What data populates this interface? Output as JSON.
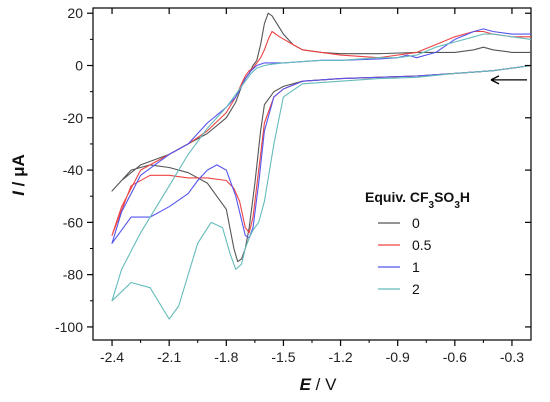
{
  "chart_data": {
    "type": "line",
    "xlabel_italic": "E",
    "xlabel_unit": " / V",
    "ylabel_italic": "I",
    "ylabel_unit": " / μA",
    "xlim": [
      -2.5,
      -0.2
    ],
    "ylim": [
      -105,
      22
    ],
    "xticks": [
      -2.4,
      -2.1,
      -1.8,
      -1.5,
      -1.2,
      -0.9,
      -0.6,
      -0.3
    ],
    "xtick_labels": [
      "-2.4",
      "-2.1",
      "-1.8",
      "-1.5",
      "-1.2",
      "-0.9",
      "-0.6",
      "-0.3"
    ],
    "yticks": [
      20,
      0,
      -20,
      -40,
      -60,
      -80,
      -100
    ],
    "ytick_labels": [
      "20",
      "0",
      "-20",
      "-40",
      "-60",
      "-80",
      "-100"
    ],
    "annotation": "scan direction arrow (cathodic scan from -0.2 V)",
    "legend": {
      "title_main": "Equiv. CF",
      "title_sub1": "3",
      "title_mid": "SO",
      "title_sub2": "3",
      "title_end": "H",
      "position": "right"
    },
    "series": [
      {
        "name": "0",
        "color": "#555555",
        "x": [
          -0.2,
          -0.4,
          -0.6,
          -0.8,
          -1.0,
          -1.2,
          -1.4,
          -1.5,
          -1.55,
          -1.6,
          -1.62,
          -1.65,
          -1.68,
          -1.7,
          -1.72,
          -1.74,
          -1.76,
          -1.8,
          -1.9,
          -2.0,
          -2.1,
          -2.2,
          -2.3,
          -2.4,
          -2.35,
          -2.25,
          -2.1,
          -2.0,
          -1.9,
          -1.8,
          -1.75,
          -1.72,
          -1.7,
          -1.68,
          -1.66,
          -1.64,
          -1.62,
          -1.6,
          -1.58,
          -1.56,
          -1.5,
          -1.45,
          -1.4,
          -1.3,
          -1.2,
          -1.0,
          -0.8,
          -0.6,
          -0.5,
          -0.45,
          -0.4,
          -0.3,
          -0.2
        ],
        "y": [
          0,
          -2,
          -3,
          -4,
          -4.5,
          -5,
          -6,
          -8,
          -10,
          -15,
          -25,
          -45,
          -62,
          -70,
          -74,
          -75,
          -70,
          -55,
          -45,
          -41,
          -39,
          -38,
          -40,
          -48,
          -44,
          -38,
          -34,
          -30,
          -26,
          -20,
          -14,
          -8,
          -5,
          -3,
          0,
          2,
          8,
          16,
          20,
          19,
          12,
          8,
          6,
          5,
          4.5,
          4.5,
          5,
          5,
          6,
          7,
          6,
          5,
          5
        ]
      },
      {
        "name": "0.5",
        "color": "#ee4444",
        "x": [
          -0.2,
          -0.4,
          -0.6,
          -0.8,
          -1.0,
          -1.2,
          -1.4,
          -1.5,
          -1.55,
          -1.6,
          -1.63,
          -1.66,
          -1.68,
          -1.7,
          -1.73,
          -1.76,
          -1.8,
          -1.9,
          -2.0,
          -2.1,
          -2.2,
          -2.3,
          -2.4,
          -2.35,
          -2.25,
          -2.1,
          -2.0,
          -1.9,
          -1.8,
          -1.75,
          -1.72,
          -1.7,
          -1.68,
          -1.66,
          -1.64,
          -1.62,
          -1.6,
          -1.58,
          -1.56,
          -1.52,
          -1.45,
          -1.4,
          -1.3,
          -1.2,
          -1.0,
          -0.8,
          -0.7,
          -0.6,
          -0.5,
          -0.45,
          -0.4,
          -0.3,
          -0.2
        ],
        "y": [
          0,
          -2,
          -3,
          -4,
          -4.5,
          -5,
          -6,
          -9,
          -12,
          -22,
          -40,
          -58,
          -64,
          -62,
          -52,
          -47,
          -44,
          -43,
          -43,
          -42,
          -42,
          -46,
          -65,
          -54,
          -40,
          -34,
          -30,
          -25,
          -18,
          -12,
          -7,
          -4,
          -2,
          -1,
          1,
          3,
          6,
          10,
          13,
          11,
          8,
          6,
          5,
          4,
          3,
          5,
          8,
          11,
          13,
          13,
          12,
          11,
          11
        ]
      },
      {
        "name": "1",
        "color": "#5555ee",
        "x": [
          -0.2,
          -0.4,
          -0.6,
          -0.8,
          -1.0,
          -1.2,
          -1.4,
          -1.5,
          -1.55,
          -1.6,
          -1.63,
          -1.66,
          -1.68,
          -1.7,
          -1.75,
          -1.8,
          -1.85,
          -1.9,
          -1.95,
          -2.0,
          -2.1,
          -2.2,
          -2.3,
          -2.4,
          -2.35,
          -2.25,
          -2.1,
          -2.0,
          -1.9,
          -1.8,
          -1.75,
          -1.72,
          -1.7,
          -1.67,
          -1.64,
          -1.6,
          -1.56,
          -1.5,
          -1.4,
          -1.3,
          -1.2,
          -1.0,
          -0.9,
          -0.85,
          -0.8,
          -0.7,
          -0.6,
          -0.5,
          -0.45,
          -0.4,
          -0.3,
          -0.2
        ],
        "y": [
          0,
          -2,
          -3,
          -4,
          -4.5,
          -5,
          -6,
          -9,
          -12,
          -25,
          -45,
          -62,
          -66,
          -65,
          -50,
          -40,
          -38,
          -40,
          -44,
          -49,
          -54,
          -58,
          -58,
          -68,
          -56,
          -42,
          -34,
          -30,
          -22,
          -16,
          -12,
          -8,
          -5,
          -2,
          0,
          1,
          1,
          1,
          1.5,
          2,
          2,
          2.5,
          3,
          4,
          3,
          5,
          10,
          13,
          14,
          13,
          12,
          12
        ]
      },
      {
        "name": "2",
        "color": "#66bbbb",
        "x": [
          -0.2,
          -0.4,
          -0.6,
          -0.8,
          -1.0,
          -1.2,
          -1.4,
          -1.5,
          -1.55,
          -1.6,
          -1.63,
          -1.66,
          -1.68,
          -1.7,
          -1.72,
          -1.75,
          -1.78,
          -1.82,
          -1.88,
          -1.95,
          -2.0,
          -2.05,
          -2.1,
          -2.2,
          -2.3,
          -2.4,
          -2.35,
          -2.25,
          -2.1,
          -2.0,
          -1.9,
          -1.8,
          -1.74,
          -1.7,
          -1.67,
          -1.64,
          -1.6,
          -1.56,
          -1.5,
          -1.4,
          -1.3,
          -1.2,
          -1.0,
          -0.9,
          -0.8,
          -0.7,
          -0.6,
          -0.5,
          -0.45,
          -0.4,
          -0.3,
          -0.2
        ],
        "y": [
          0,
          -2,
          -3,
          -4.5,
          -5,
          -6,
          -7,
          -12,
          -30,
          -52,
          -60,
          -63,
          -66,
          -70,
          -76,
          -78,
          -72,
          -62,
          -60,
          -68,
          -80,
          -92,
          -97,
          -85,
          -83,
          -90,
          -78,
          -64,
          -46,
          -34,
          -24,
          -16,
          -10,
          -6,
          -3,
          -1,
          0,
          0.5,
          1,
          1.5,
          2,
          2,
          3,
          3,
          4,
          7,
          9,
          11,
          12,
          12,
          11,
          10
        ]
      }
    ]
  }
}
